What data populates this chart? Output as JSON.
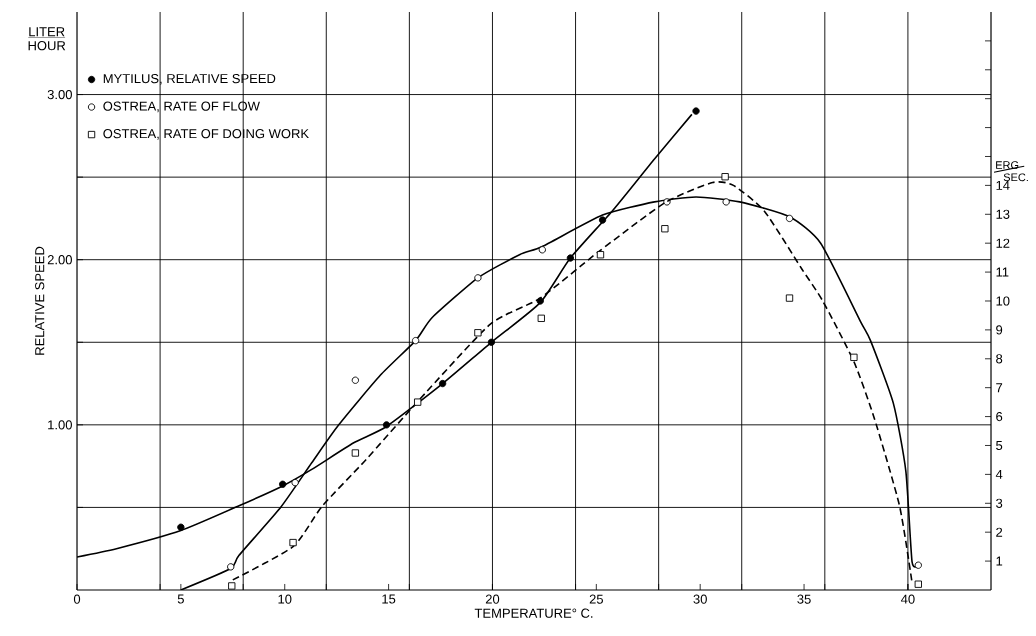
{
  "chart_data": {
    "type": "scatter",
    "xlabel": "TEMPERATURE° C.",
    "ylabel": "RELATIVE SPEED",
    "annotations": [
      "LITER",
      "HOUR",
      "ERG",
      "SEC."
    ],
    "xlim": [
      0,
      44
    ],
    "ylim": [
      0,
      3.5
    ],
    "y2lim": [
      0,
      20
    ],
    "xticks": [
      0,
      5,
      10,
      15,
      20,
      25,
      30,
      35,
      40,
      {
        "value": 4,
        "label": null
      },
      {
        "value": 8,
        "label": null
      },
      {
        "value": 12,
        "label": null
      },
      {
        "value": 16,
        "label": null
      },
      {
        "value": 20,
        "label": null
      },
      {
        "value": 24,
        "label": null
      },
      {
        "value": 28,
        "label": null
      },
      {
        "value": 32,
        "label": null
      },
      {
        "value": 36,
        "label": null
      },
      {
        "value": 40,
        "label": null
      }
    ],
    "yticks": [
      {
        "value": 0.5,
        "label": null
      },
      {
        "value": 1,
        "label": "1.00"
      },
      {
        "value": 1.5,
        "label": null
      },
      {
        "value": 2,
        "label": "2.00"
      },
      {
        "value": 2.5,
        "label": null
      },
      {
        "value": 3,
        "label": "3.00"
      }
    ],
    "y2ticks": [
      1,
      2,
      3,
      4,
      5,
      6,
      7,
      8,
      9,
      10,
      11,
      12,
      13,
      14,
      {
        "value": 15,
        "label": null
      },
      {
        "value": 16,
        "label": null
      },
      {
        "value": 17,
        "label": null
      },
      {
        "value": 18,
        "label": null
      },
      {
        "value": 19,
        "label": null
      }
    ],
    "grid": true,
    "legend": "top left",
    "series": [
      {
        "name": "MYTILUS, RELATIVE SPEED",
        "marker": "circle",
        "color": "#000000",
        "x": [
          5,
          9.9,
          14.9,
          17.6,
          19.95,
          22.3,
          23.75,
          25.3,
          29.8
        ],
        "values": [
          0.38,
          0.64,
          1.0,
          1.25,
          1.5,
          1.75,
          2.01,
          2.24,
          2.9
        ]
      },
      {
        "name": "OSTREA, RATE OF FLOW",
        "marker": "circle",
        "color": "#ffffff",
        "x": [
          7.4,
          10.5,
          13.4,
          16.3,
          19.3,
          22.4,
          28.4,
          31.25,
          34.3,
          40.5
        ],
        "values": [
          0.14,
          0.65,
          1.27,
          1.51,
          1.89,
          2.06,
          2.35,
          2.35,
          2.25,
          0.15
        ]
      },
      {
        "name": "OSTREA, RATE OF DOING WORK",
        "marker": "square",
        "axis": "y2",
        "color": "#ffffff",
        "x": [
          7.45,
          10.4,
          13.4,
          16.4,
          19.3,
          22.35,
          25.2,
          28.3,
          31.2,
          34.3,
          37.4,
          40.5
        ],
        "values": [
          0.14,
          1.64,
          4.74,
          6.5,
          8.9,
          9.4,
          11.6,
          12.5,
          14.3,
          10.1,
          8.05,
          0.2
        ]
      },
      {
        "type": "line",
        "line_style": "solid",
        "marker": "none",
        "color": "#000000",
        "x": [
          0,
          1.9,
          5,
          7.8,
          9.9,
          11.3,
          13.3,
          14.9,
          17.6,
          19.95,
          22.3,
          23.75,
          25.8,
          27.8,
          29.6
        ],
        "values": [
          0.2,
          0.25,
          0.36,
          0.51,
          0.63,
          0.73,
          0.89,
          0.99,
          1.25,
          1.5,
          1.74,
          2.01,
          2.3,
          2.61,
          2.88
        ]
      },
      {
        "type": "line",
        "line_style": "solid",
        "marker": "none",
        "color": "#000000",
        "x": [
          5,
          7.4,
          7.8,
          9.8,
          11.3,
          12.6,
          14.6,
          16.3,
          17.1,
          19.3,
          21.3,
          22.4,
          25.3,
          27.8,
          29.8,
          31.9,
          34.3,
          35.8,
          37.7,
          38.2,
          39.3,
          39.9,
          40.2,
          40.5
        ],
        "values": [
          0,
          0.13,
          0.21,
          0.5,
          0.77,
          1.0,
          1.3,
          1.51,
          1.65,
          1.89,
          2.03,
          2.08,
          2.27,
          2.35,
          2.38,
          2.35,
          2.26,
          2.1,
          1.63,
          1.51,
          1.13,
          0.72,
          0.17,
          0.15
        ]
      },
      {
        "type": "line",
        "line_style": "dashed",
        "marker": "none",
        "axis": "y2",
        "color": "#000000",
        "x": [
          7.5,
          10.4,
          11.8,
          13.9,
          16.5,
          19.9,
          22.3,
          25.1,
          28.3,
          30.6,
          31.6,
          33.1,
          34.9,
          35.9,
          37.4,
          38.4,
          39.6,
          40.2
        ],
        "values": [
          0.35,
          1.5,
          2.9,
          4.5,
          6.6,
          9.2,
          10.1,
          11.7,
          13.4,
          14.1,
          14.0,
          13.1,
          11.1,
          10.0,
          7.9,
          5.9,
          2.9,
          0.25
        ]
      }
    ]
  }
}
